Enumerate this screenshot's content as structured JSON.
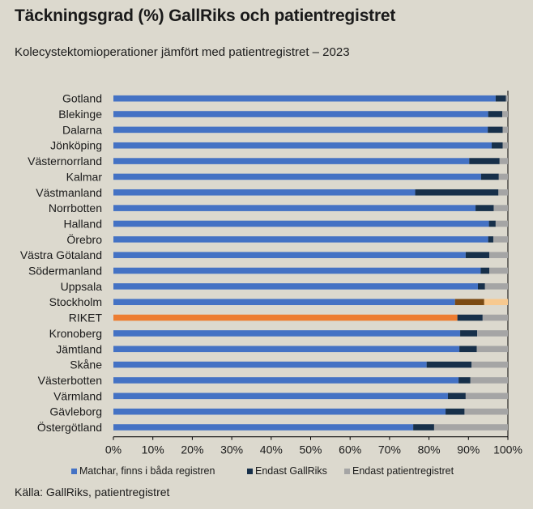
{
  "title": "Täckningsgrad (%) GallRiks och patientregistret",
  "subtitle": "Kolecystektomioperationer jämfört med patientregistret – 2023",
  "source": "Källa: GallRiks, patientregistret",
  "chart_data": {
    "type": "bar",
    "orientation": "horizontal",
    "stacked": true,
    "categories": [
      "Gotland",
      "Blekinge",
      "Dalarna",
      "Jönköping",
      "Västernorrland",
      "Kalmar",
      "Västmanland",
      "Norrbotten",
      "Halland",
      "Örebro",
      "Västra Götaland",
      "Södermanland",
      "Uppsala",
      "Stockholm",
      "RIKET",
      "Kronoberg",
      "Jämtland",
      "Skåne",
      "Västerbotten",
      "Värmland",
      "Gävleborg",
      "Östergötland"
    ],
    "series": [
      {
        "name": "Matchar, finns i båda registren",
        "color": "#4472c4",
        "values": [
          96.9,
          95.0,
          94.9,
          95.9,
          90.2,
          93.2,
          76.5,
          91.8,
          95.2,
          95.0,
          89.3,
          93.1,
          92.4,
          86.6,
          87.2,
          87.9,
          87.7,
          79.4,
          87.5,
          84.8,
          84.2,
          76.0
        ]
      },
      {
        "name": "Endast GallRiks",
        "color": "#17304a",
        "values": [
          2.6,
          3.6,
          3.8,
          2.8,
          7.7,
          4.5,
          21.1,
          4.6,
          1.7,
          1.3,
          6.0,
          2.2,
          1.8,
          7.4,
          6.4,
          4.3,
          4.4,
          11.4,
          3.0,
          4.5,
          4.8,
          5.3
        ]
      },
      {
        "name": "Endast patientregistret",
        "color": "#a5a5a5",
        "values": [
          0.5,
          1.4,
          1.3,
          1.3,
          2.1,
          2.3,
          2.4,
          3.6,
          3.1,
          3.7,
          4.7,
          4.7,
          5.8,
          6.0,
          6.4,
          7.8,
          7.9,
          9.2,
          9.5,
          10.7,
          11.0,
          18.7
        ]
      }
    ],
    "highlight": {
      "Stockholm": [
        "#4472c4",
        "#7b4a12",
        "#f7c98f"
      ],
      "RIKET": [
        "#ed7d31",
        "#17304a",
        "#a5a5a5"
      ]
    },
    "xticks": [
      "0%",
      "10%",
      "20%",
      "30%",
      "40%",
      "50%",
      "60%",
      "70%",
      "80%",
      "90%",
      "100%"
    ],
    "xlim": [
      0,
      100
    ],
    "grid": true,
    "legend_position": "bottom"
  }
}
